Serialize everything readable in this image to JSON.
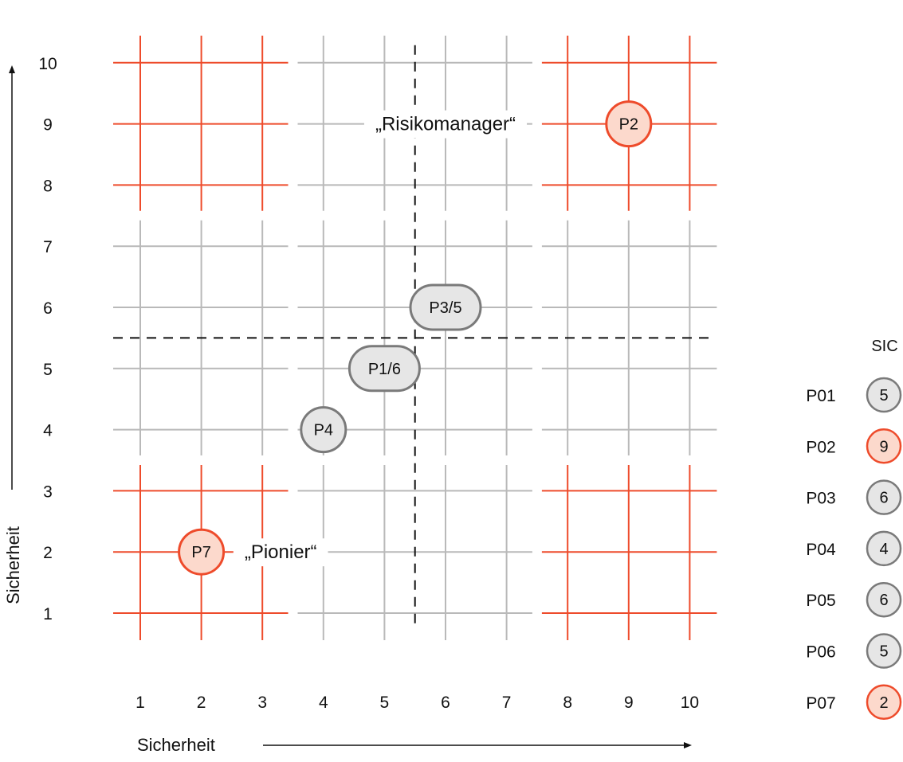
{
  "chart_data": {
    "type": "scatter",
    "xlabel": "Sicherheit",
    "ylabel": "Sicherheit",
    "xlim": [
      1,
      10
    ],
    "ylim": [
      1,
      10
    ],
    "x_ticks": [
      "1",
      "2",
      "3",
      "4",
      "5",
      "6",
      "7",
      "8",
      "9",
      "10"
    ],
    "y_ticks": [
      "1",
      "2",
      "3",
      "4",
      "5",
      "6",
      "7",
      "8",
      "9",
      "10"
    ],
    "grid": true,
    "divider_lines": {
      "x": 5.5,
      "y": 5.5,
      "style": "dashed"
    },
    "highlight_quadrants": [
      {
        "x_range": [
          1,
          3
        ],
        "y_range": [
          8,
          10
        ],
        "color": "#ee4b2b"
      },
      {
        "x_range": [
          8,
          10
        ],
        "y_range": [
          8,
          10
        ],
        "color": "#ee4b2b"
      },
      {
        "x_range": [
          1,
          3
        ],
        "y_range": [
          1,
          3
        ],
        "color": "#ee4b2b"
      },
      {
        "x_range": [
          8,
          10
        ],
        "y_range": [
          1,
          3
        ],
        "color": "#ee4b2b"
      }
    ],
    "annotations": [
      {
        "text": "„Risikomanager“",
        "x": 6.0,
        "y": 9
      },
      {
        "text": "„Pionier“",
        "x": 3.3,
        "y": 2
      }
    ],
    "points": [
      {
        "label": "P2",
        "x": 9,
        "y": 9,
        "highlight": true,
        "shape": "circle"
      },
      {
        "label": "P3/5",
        "x": 6,
        "y": 6,
        "highlight": false,
        "shape": "pill"
      },
      {
        "label": "P1/6",
        "x": 5,
        "y": 5,
        "highlight": false,
        "shape": "pill"
      },
      {
        "label": "P4",
        "x": 4,
        "y": 4,
        "highlight": false,
        "shape": "circle"
      },
      {
        "label": "P7",
        "x": 2,
        "y": 2,
        "highlight": true,
        "shape": "circle"
      }
    ],
    "legend": {
      "placement": "right",
      "title": "SIC",
      "items": [
        {
          "label": "P01",
          "value": "5",
          "highlight": false
        },
        {
          "label": "P02",
          "value": "9",
          "highlight": true
        },
        {
          "label": "P03",
          "value": "6",
          "highlight": false
        },
        {
          "label": "P04",
          "value": "4",
          "highlight": false
        },
        {
          "label": "P05",
          "value": "6",
          "highlight": false
        },
        {
          "label": "P06",
          "value": "5",
          "highlight": false
        },
        {
          "label": "P07",
          "value": "2",
          "highlight": true
        }
      ]
    },
    "colors": {
      "accent": "#ee4b2b",
      "accent_fill": "#fcd9cc",
      "grid": "#b9b9b9",
      "point_fill": "#e6e6e6",
      "point_stroke": "#7a7a7a",
      "text": "#111111"
    }
  }
}
